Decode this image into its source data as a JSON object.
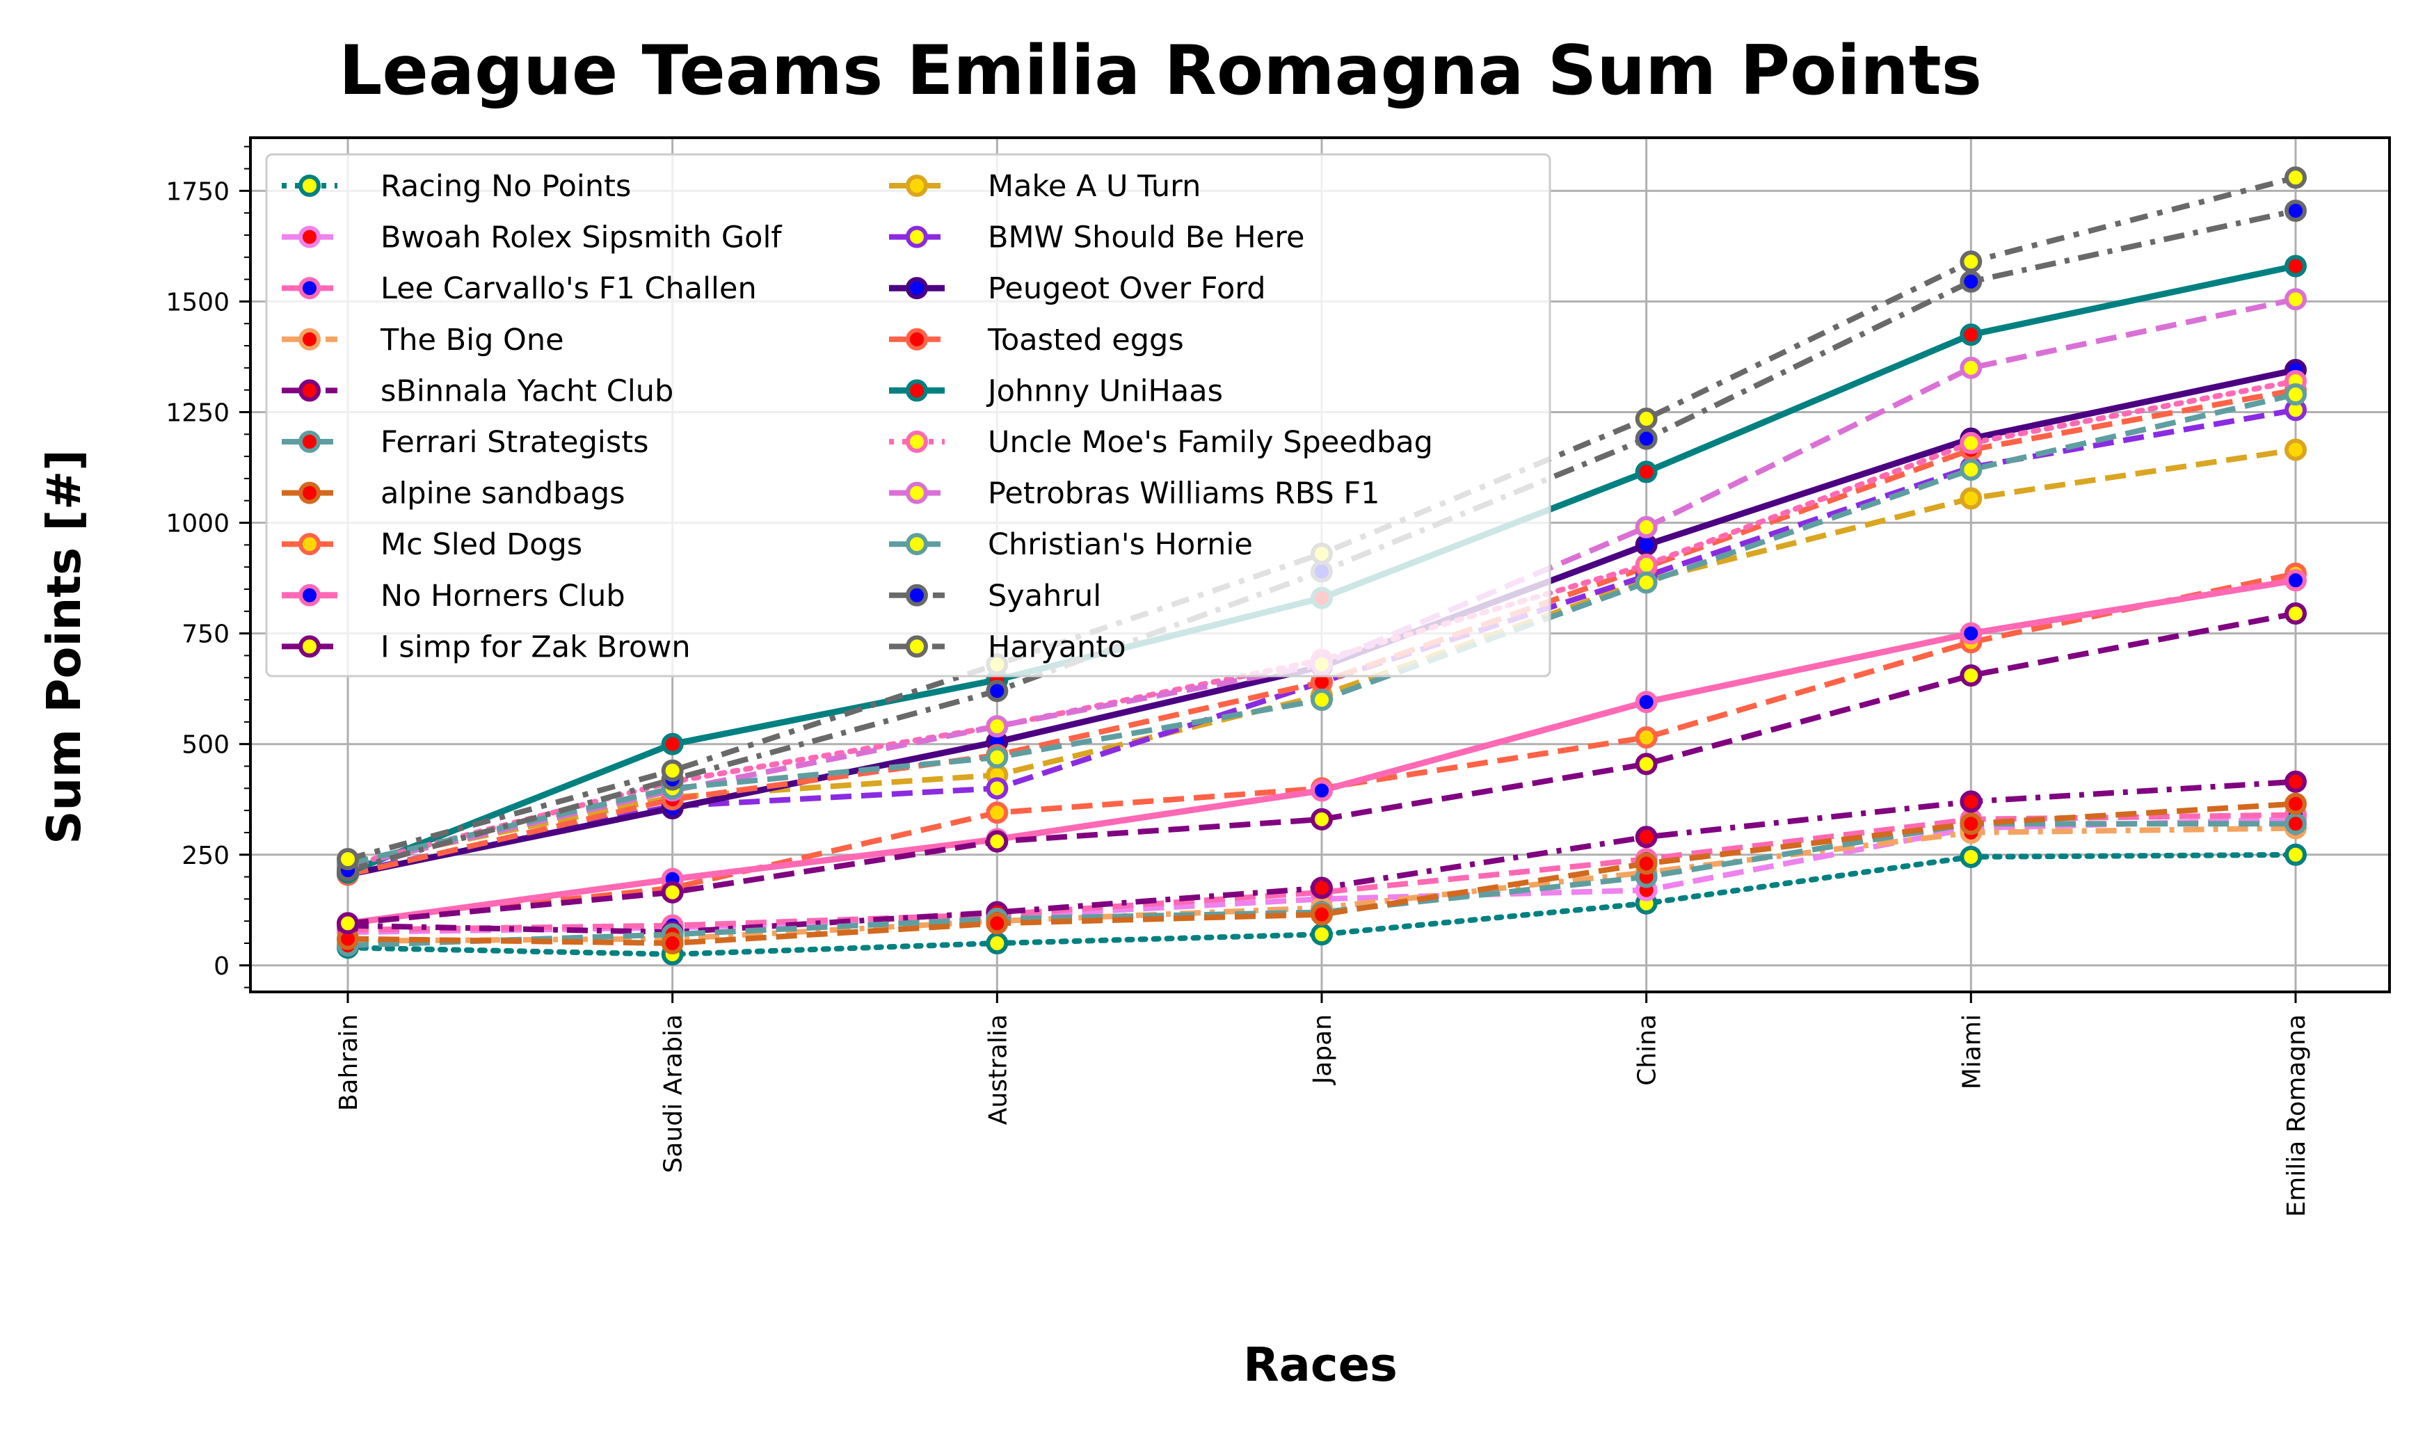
{
  "chart_data": {
    "type": "line",
    "title": "League Teams Emilia Romagna Sum Points",
    "xlabel": "Races",
    "ylabel": "Sum Points [#]",
    "categories": [
      "Bahrain",
      "Saudi Arabia",
      "Australia",
      "Japan",
      "China",
      "Miami",
      "Emilia Romagna"
    ],
    "ylim": [
      -60,
      1870
    ],
    "yticks": [
      0,
      250,
      500,
      750,
      1000,
      1250,
      1500,
      1750
    ],
    "grid": true,
    "legend_position": "upper-left",
    "series": [
      {
        "name": "Racing No Points",
        "color": "#008080",
        "dash": "dot",
        "marker_face": "#ffff00",
        "values": [
          40,
          25,
          50,
          70,
          140,
          245,
          250
        ]
      },
      {
        "name": "Bwoah Rolex Sipsmith Golf",
        "color": "#ee82ee",
        "dash": "dash",
        "marker_face": "#ff0000",
        "values": [
          75,
          85,
          110,
          150,
          170,
          310,
          330
        ]
      },
      {
        "name": "Lee Carvallo's F1 Challen",
        "color": "#ff69b4",
        "dash": "dash",
        "marker_face": "#0000ff",
        "values": [
          80,
          90,
          115,
          165,
          240,
          330,
          340
        ]
      },
      {
        "name": "The Big One",
        "color": "#f4a460",
        "dash": "dashdot",
        "marker_face": "#ff0000",
        "values": [
          55,
          60,
          100,
          130,
          210,
          300,
          310
        ]
      },
      {
        "name": "sBinnala Yacht Club",
        "color": "#800080",
        "dash": "dashdot",
        "marker_face": "#ff0000",
        "values": [
          90,
          75,
          120,
          175,
          290,
          370,
          415
        ]
      },
      {
        "name": "Ferrari Strategists",
        "color": "#5f9ea0",
        "dash": "dash",
        "marker_face": "#ff0000",
        "values": [
          45,
          70,
          105,
          120,
          200,
          320,
          320
        ]
      },
      {
        "name": "alpine sandbags",
        "color": "#d2691e",
        "dash": "dash",
        "marker_face": "#ff0000",
        "values": [
          60,
          50,
          95,
          115,
          230,
          320,
          365
        ]
      },
      {
        "name": "Mc Sled Dogs",
        "color": "#ff6347",
        "dash": "dash",
        "marker_face": "#ffd700",
        "values": [
          95,
          175,
          345,
          400,
          515,
          730,
          885
        ]
      },
      {
        "name": "No Horners Club",
        "color": "#ff69b4",
        "dash": "solid",
        "marker_face": "#0000ff",
        "values": [
          95,
          195,
          285,
          395,
          595,
          750,
          870
        ]
      },
      {
        "name": "I simp for Zak Brown",
        "color": "#800080",
        "dash": "dash",
        "marker_face": "#ffff00",
        "values": [
          95,
          165,
          280,
          330,
          455,
          655,
          795
        ]
      },
      {
        "name": "Make A U Turn",
        "color": "#daa520",
        "dash": "dash",
        "marker_face": "#ffd700",
        "values": [
          230,
          380,
          430,
          610,
          870,
          1055,
          1165
        ]
      },
      {
        "name": "BMW Should Be Here",
        "color": "#8a2be2",
        "dash": "dash",
        "marker_face": "#ffff00",
        "values": [
          210,
          360,
          400,
          640,
          880,
          1125,
          1255
        ]
      },
      {
        "name": "Peugeot Over Ford",
        "color": "#4b0082",
        "dash": "solid",
        "marker_face": "#0000ff",
        "values": [
          205,
          355,
          505,
          675,
          950,
          1190,
          1345
        ]
      },
      {
        "name": "Toasted eggs",
        "color": "#ff6347",
        "dash": "dash",
        "marker_face": "#ff0000",
        "values": [
          205,
          375,
          475,
          640,
          900,
          1165,
          1300
        ]
      },
      {
        "name": "Johnny UniHaas",
        "color": "#008080",
        "dash": "solid",
        "marker_face": "#ff0000",
        "values": [
          210,
          500,
          645,
          830,
          1115,
          1425,
          1580
        ]
      },
      {
        "name": "Uncle Moe's Family Speedbag",
        "color": "#ff69b4",
        "dash": "dot",
        "marker_face": "#ffff00",
        "values": [
          225,
          415,
          540,
          690,
          905,
          1180,
          1320
        ]
      },
      {
        "name": "Petrobras Williams RBS F1",
        "color": "#da70d6",
        "dash": "dash",
        "marker_face": "#ffff00",
        "values": [
          225,
          395,
          540,
          680,
          990,
          1350,
          1505
        ]
      },
      {
        "name": "Christian's Hornie",
        "color": "#5f9ea0",
        "dash": "dash",
        "marker_face": "#ffff00",
        "values": [
          230,
          400,
          470,
          600,
          865,
          1120,
          1290
        ]
      },
      {
        "name": "Syahrul",
        "color": "#696969",
        "dash": "dashdot",
        "marker_face": "#0000ff",
        "values": [
          215,
          420,
          620,
          890,
          1190,
          1545,
          1705
        ]
      },
      {
        "name": "Haryanto",
        "color": "#696969",
        "dash": "dashdot2",
        "marker_face": "#ffff00",
        "values": [
          240,
          440,
          680,
          930,
          1235,
          1590,
          1780
        ]
      }
    ]
  }
}
